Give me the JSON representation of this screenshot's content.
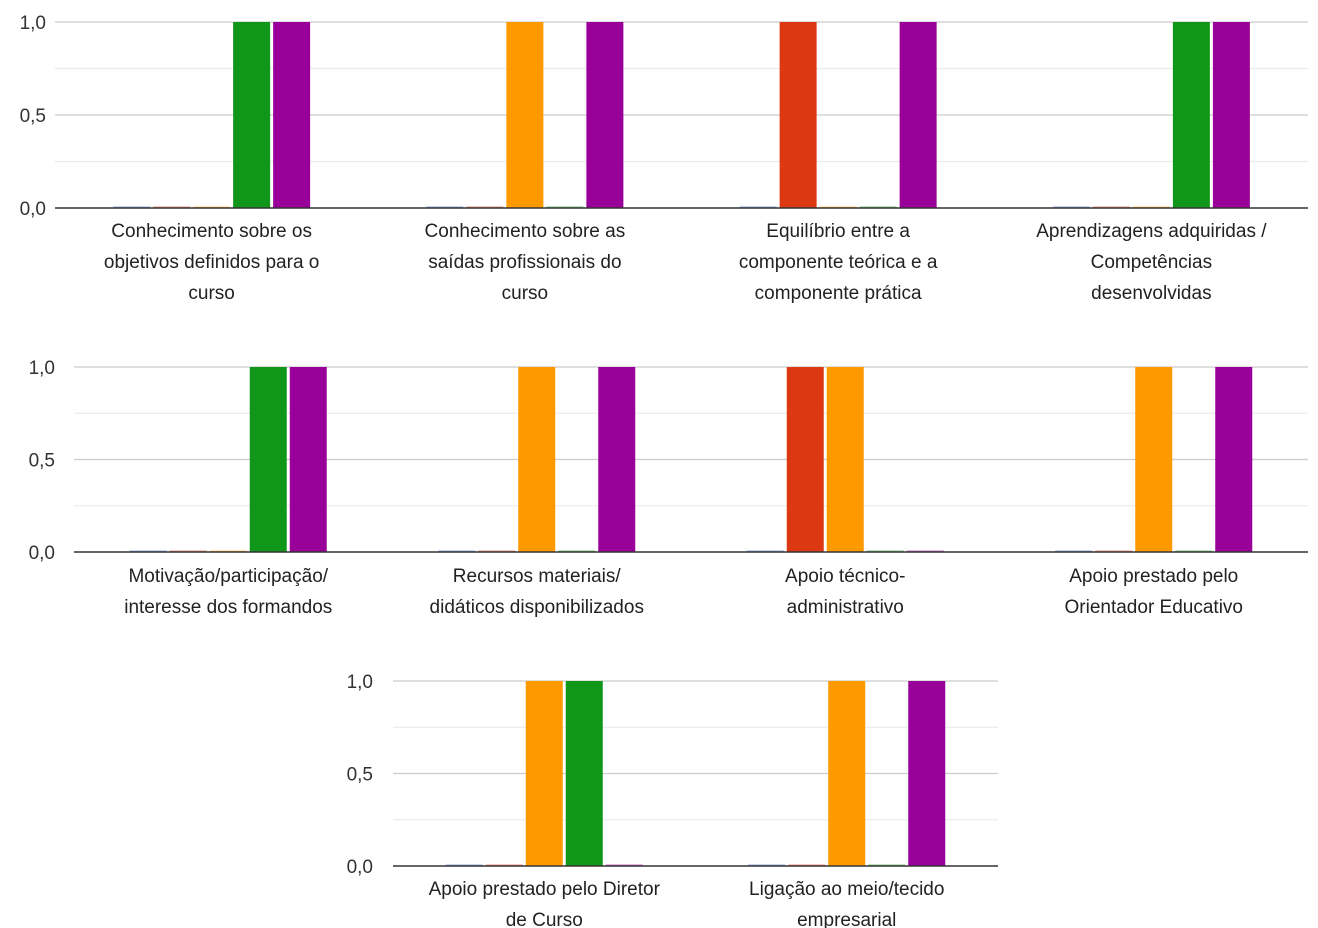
{
  "chart_data": {
    "type": "bar",
    "ylim": [
      0,
      1
    ],
    "yticks": [
      "0,0",
      "0,5",
      "1,0"
    ],
    "grid": true,
    "legend": "none",
    "colors": [
      "#dc3912",
      "#ff9900",
      "#109618",
      "#990099"
    ],
    "panels": [
      {
        "categories": [
          {
            "lines": [
              "Conhecimento sobre os",
              "objetivos definidos para o",
              "curso"
            ],
            "values": [
              0,
              0,
              0,
              1,
              1
            ]
          },
          {
            "lines": [
              "Conhecimento sobre as",
              "saídas profissionais do",
              "curso"
            ],
            "values": [
              0,
              0,
              1,
              0,
              1
            ]
          },
          {
            "lines": [
              "Equilíbrio entre a",
              "componente teórica e a",
              "componente prática"
            ],
            "values": [
              0,
              1,
              0,
              0,
              1
            ]
          },
          {
            "lines": [
              "Aprendizagens adquiridas /",
              "Competências",
              "desenvolvidas"
            ],
            "values": [
              0,
              0,
              0,
              1,
              1
            ]
          }
        ]
      },
      {
        "categories": [
          {
            "lines": [
              "Motivação/participação/",
              "interesse dos formandos"
            ],
            "values": [
              0,
              0,
              0,
              1,
              1
            ]
          },
          {
            "lines": [
              "Recursos materiais/",
              "didáticos disponibilizados"
            ],
            "values": [
              0,
              0,
              1,
              0,
              1
            ]
          },
          {
            "lines": [
              "Apoio técnico-",
              "administrativo"
            ],
            "values": [
              0,
              1,
              1,
              0,
              0
            ]
          },
          {
            "lines": [
              "Apoio prestado pelo",
              "Orientador Educativo"
            ],
            "values": [
              0,
              0,
              1,
              0,
              1
            ]
          }
        ]
      },
      {
        "categories": [
          {
            "lines": [
              "Apoio prestado pelo Diretor",
              "de Curso"
            ],
            "values": [
              0,
              0,
              1,
              1,
              0
            ]
          },
          {
            "lines": [
              "Ligação ao meio/tecido",
              "empresarial"
            ],
            "values": [
              0,
              0,
              1,
              0,
              1
            ]
          }
        ]
      }
    ]
  }
}
